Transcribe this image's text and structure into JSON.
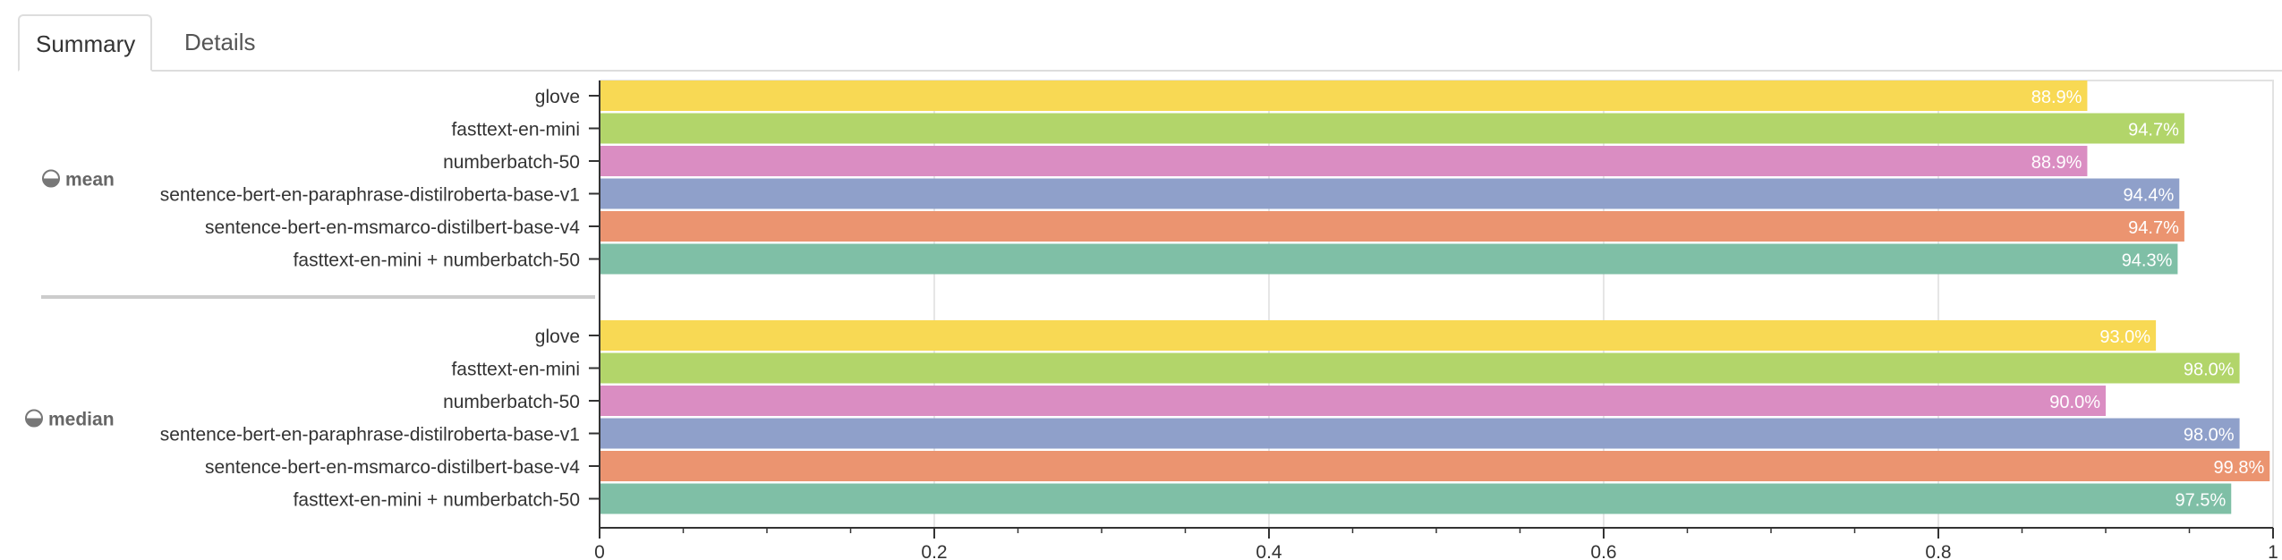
{
  "tabs": [
    {
      "label": "Summary",
      "active": true
    },
    {
      "label": "Details",
      "active": false
    }
  ],
  "chart_data": {
    "type": "bar",
    "orientation": "horizontal",
    "xlim": [
      0,
      1
    ],
    "x_ticks": [
      "0",
      "0.2",
      "0.4",
      "0.6",
      "0.8",
      "1"
    ],
    "grid": true,
    "groups": [
      {
        "name": "mean",
        "bars": [
          {
            "label": "glove",
            "value": 0.889,
            "text": "88.9%"
          },
          {
            "label": "fasttext-en-mini",
            "value": 0.947,
            "text": "94.7%"
          },
          {
            "label": "numberbatch-50",
            "value": 0.889,
            "text": "88.9%"
          },
          {
            "label": "sentence-bert-en-paraphrase-distilroberta-base-v1",
            "value": 0.944,
            "text": "94.4%"
          },
          {
            "label": "sentence-bert-en-msmarco-distilbert-base-v4",
            "value": 0.947,
            "text": "94.7%"
          },
          {
            "label": "fasttext-en-mini + numberbatch-50",
            "value": 0.943,
            "text": "94.3%"
          }
        ]
      },
      {
        "name": "median",
        "bars": [
          {
            "label": "glove",
            "value": 0.93,
            "text": "93.0%"
          },
          {
            "label": "fasttext-en-mini",
            "value": 0.98,
            "text": "98.0%"
          },
          {
            "label": "numberbatch-50",
            "value": 0.9,
            "text": "90.0%"
          },
          {
            "label": "sentence-bert-en-paraphrase-distilroberta-base-v1",
            "value": 0.98,
            "text": "98.0%"
          },
          {
            "label": "sentence-bert-en-msmarco-distilbert-base-v4",
            "value": 0.998,
            "text": "99.8%"
          },
          {
            "label": "fasttext-en-mini + numberbatch-50",
            "value": 0.975,
            "text": "97.5%"
          }
        ]
      }
    ],
    "series_colors": [
      "#f8d954",
      "#b2d56a",
      "#da8dc2",
      "#8fa0ca",
      "#eb9470",
      "#7fbfa6"
    ]
  }
}
